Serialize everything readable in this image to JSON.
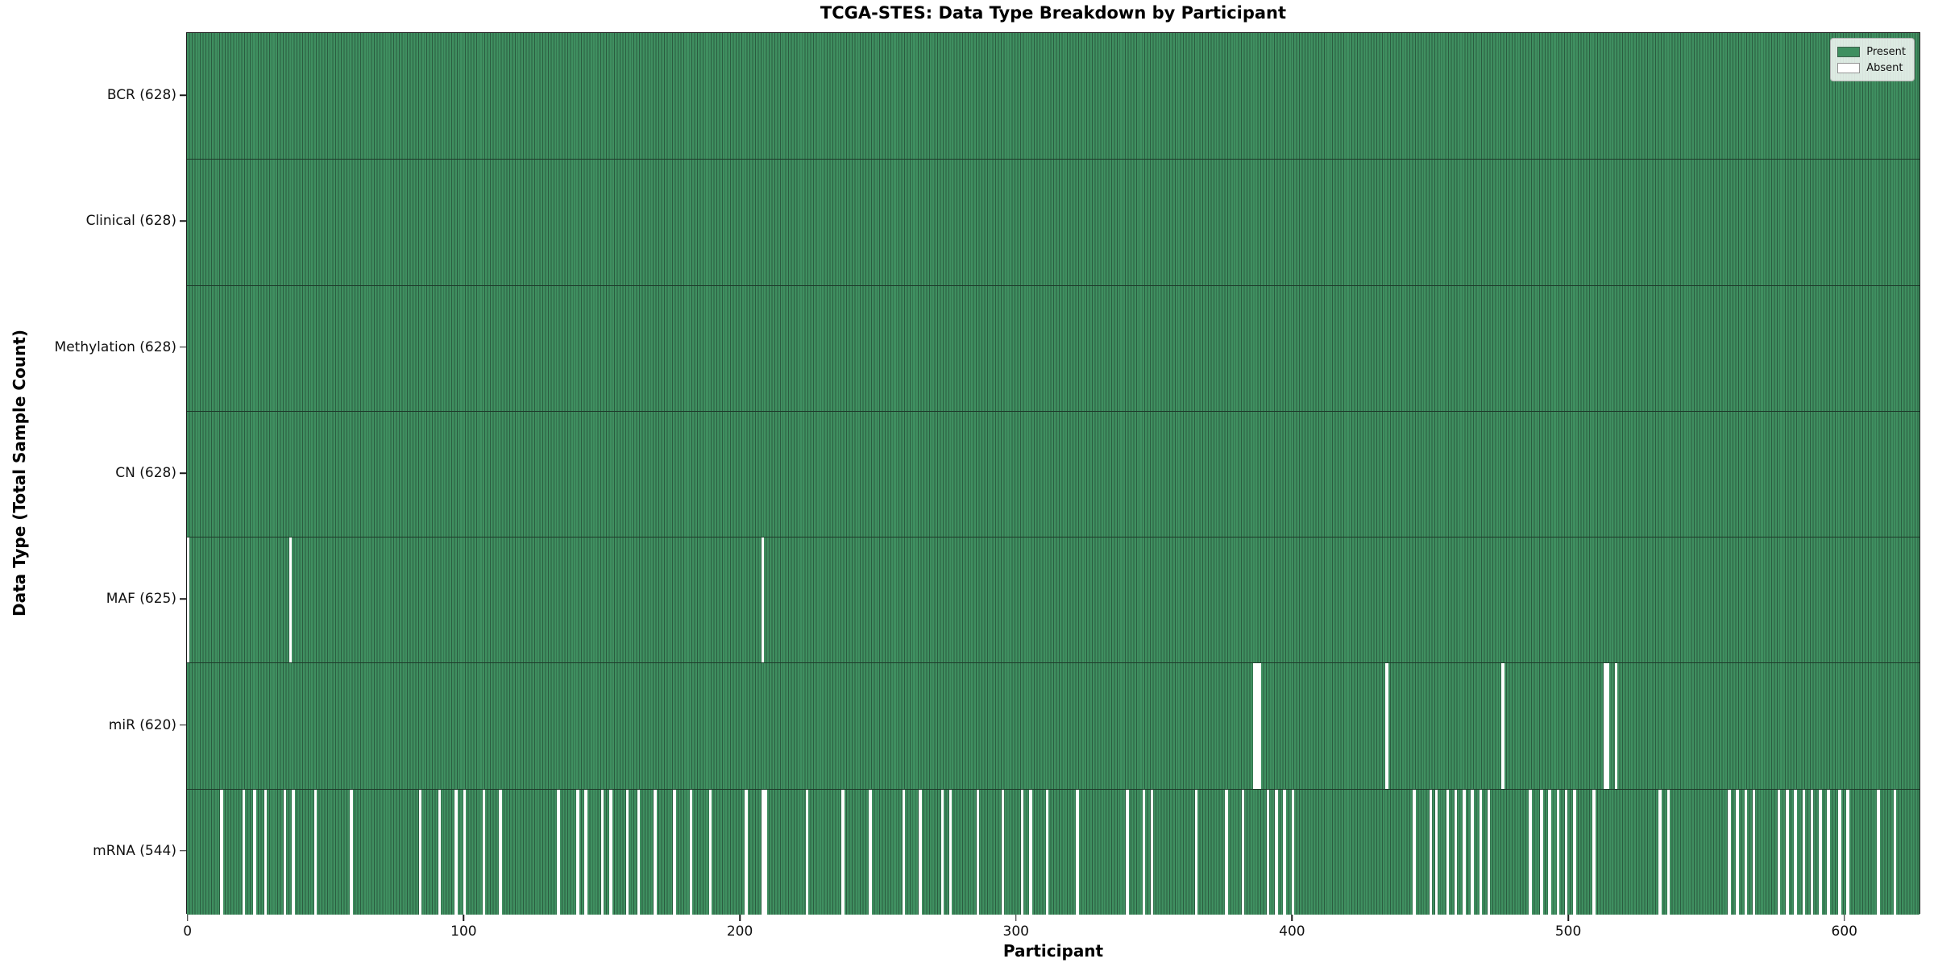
{
  "chart_data": {
    "type": "heatmap",
    "title": "TCGA-STES: Data Type Breakdown by Participant",
    "xlabel": "Participant",
    "ylabel": "Data Type (Total Sample Count)",
    "x_ticks": [
      0,
      100,
      200,
      300,
      400,
      500,
      600
    ],
    "xlim": [
      -0.5,
      627.5
    ],
    "n_participants": 628,
    "grid": false,
    "legend_position": "upper right",
    "legend": [
      {
        "label": "Present",
        "color": "#3f8f60"
      },
      {
        "label": "Absent",
        "color": "#ffffff"
      }
    ],
    "rows": [
      {
        "label": "BCR (628)",
        "data_type": "BCR",
        "present_count": 628,
        "absent_participants": []
      },
      {
        "label": "Clinical (628)",
        "data_type": "Clinical",
        "present_count": 628,
        "absent_participants": []
      },
      {
        "label": "Methylation (628)",
        "data_type": "Methylation",
        "present_count": 628,
        "absent_participants": []
      },
      {
        "label": "CN (628)",
        "data_type": "CN",
        "present_count": 628,
        "absent_participants": []
      },
      {
        "label": "MAF (625)",
        "data_type": "MAF",
        "present_count": 625,
        "absent_participants": [
          0,
          37,
          208
        ]
      },
      {
        "label": "miR (620)",
        "data_type": "miR",
        "present_count": 620,
        "absent_participants": [
          386,
          387,
          388,
          434,
          476,
          513,
          514,
          517
        ]
      },
      {
        "label": "mRNA (544)",
        "data_type": "mRNA",
        "present_count": 544,
        "absent_participants": [
          12,
          20,
          24,
          28,
          35,
          38,
          46,
          59,
          84,
          91,
          97,
          100,
          107,
          113,
          134,
          141,
          144,
          150,
          153,
          159,
          163,
          169,
          176,
          182,
          189,
          202,
          208,
          209,
          224,
          237,
          247,
          259,
          265,
          273,
          276,
          286,
          295,
          302,
          305,
          311,
          322,
          340,
          346,
          349,
          365,
          376,
          382,
          391,
          394,
          397,
          400,
          444,
          450,
          452,
          456,
          459,
          462,
          465,
          468,
          471,
          486,
          490,
          493,
          496,
          499,
          502,
          509,
          533,
          536,
          558,
          561,
          564,
          567,
          576,
          579,
          582,
          585,
          588,
          591,
          594,
          598,
          601,
          612,
          618
        ]
      }
    ],
    "colors": {
      "present_fill": "#3f8f60",
      "present_edge": "#2b5c40",
      "absent_fill": "#ffffff",
      "spine": "#1a1a1a",
      "text": "#111111"
    }
  }
}
